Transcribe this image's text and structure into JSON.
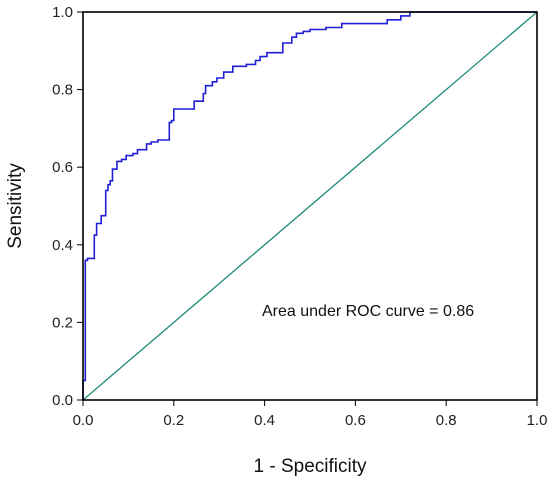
{
  "chart_data": {
    "type": "line",
    "title": "",
    "xlabel": "1 - Specificity",
    "ylabel": "Sensitivity",
    "xlim": [
      0.0,
      1.0
    ],
    "ylim": [
      0.0,
      1.0
    ],
    "xticks": [
      "0.0",
      "0.2",
      "0.4",
      "0.6",
      "0.8",
      "1.0"
    ],
    "yticks": [
      "0.0",
      "0.2",
      "0.4",
      "0.6",
      "0.8",
      "1.0"
    ],
    "grid": false,
    "annotation": "Area under ROC curve = 0.86",
    "colors": {
      "roc": "#1f1fd6",
      "reference": "#1f8a7a",
      "axis": "#000000"
    },
    "series": [
      {
        "x": [
          0.0,
          0.0,
          0.005,
          0.005,
          0.01,
          0.01,
          0.025,
          0.025,
          0.03,
          0.03,
          0.04,
          0.04,
          0.05,
          0.05,
          0.055,
          0.055,
          0.06,
          0.06,
          0.065,
          0.065,
          0.075,
          0.075,
          0.085,
          0.085,
          0.095,
          0.095,
          0.11,
          0.11,
          0.12,
          0.12,
          0.14,
          0.14,
          0.15,
          0.15,
          0.165,
          0.165,
          0.19,
          0.19,
          0.195,
          0.195,
          0.2,
          0.2,
          0.245,
          0.245,
          0.265,
          0.265,
          0.27,
          0.27,
          0.285,
          0.285,
          0.295,
          0.295,
          0.31,
          0.31,
          0.33,
          0.33,
          0.36,
          0.36,
          0.38,
          0.38,
          0.39,
          0.39,
          0.405,
          0.405,
          0.44,
          0.44,
          0.46,
          0.46,
          0.47,
          0.47,
          0.485,
          0.485,
          0.5,
          0.5,
          0.535,
          0.535,
          0.57,
          0.57,
          0.67,
          0.67,
          0.7,
          0.7,
          0.72,
          0.72,
          0.73,
          1.0
        ],
        "y": [
          0.0,
          0.05,
          0.05,
          0.36,
          0.36,
          0.365,
          0.365,
          0.425,
          0.425,
          0.455,
          0.455,
          0.475,
          0.475,
          0.54,
          0.54,
          0.555,
          0.555,
          0.565,
          0.565,
          0.595,
          0.595,
          0.615,
          0.615,
          0.62,
          0.62,
          0.63,
          0.63,
          0.635,
          0.635,
          0.645,
          0.645,
          0.66,
          0.66,
          0.665,
          0.665,
          0.67,
          0.67,
          0.715,
          0.715,
          0.72,
          0.72,
          0.75,
          0.75,
          0.77,
          0.77,
          0.79,
          0.79,
          0.81,
          0.81,
          0.82,
          0.82,
          0.83,
          0.83,
          0.845,
          0.845,
          0.86,
          0.86,
          0.865,
          0.865,
          0.875,
          0.875,
          0.885,
          0.885,
          0.895,
          0.895,
          0.92,
          0.92,
          0.935,
          0.935,
          0.945,
          0.945,
          0.95,
          0.95,
          0.955,
          0.955,
          0.96,
          0.96,
          0.97,
          0.97,
          0.98,
          0.98,
          0.99,
          0.99,
          1.0,
          1.0,
          1.0
        ]
      },
      {
        "x": [
          0.0,
          1.0
        ],
        "y": [
          0.0,
          1.0
        ]
      }
    ]
  }
}
